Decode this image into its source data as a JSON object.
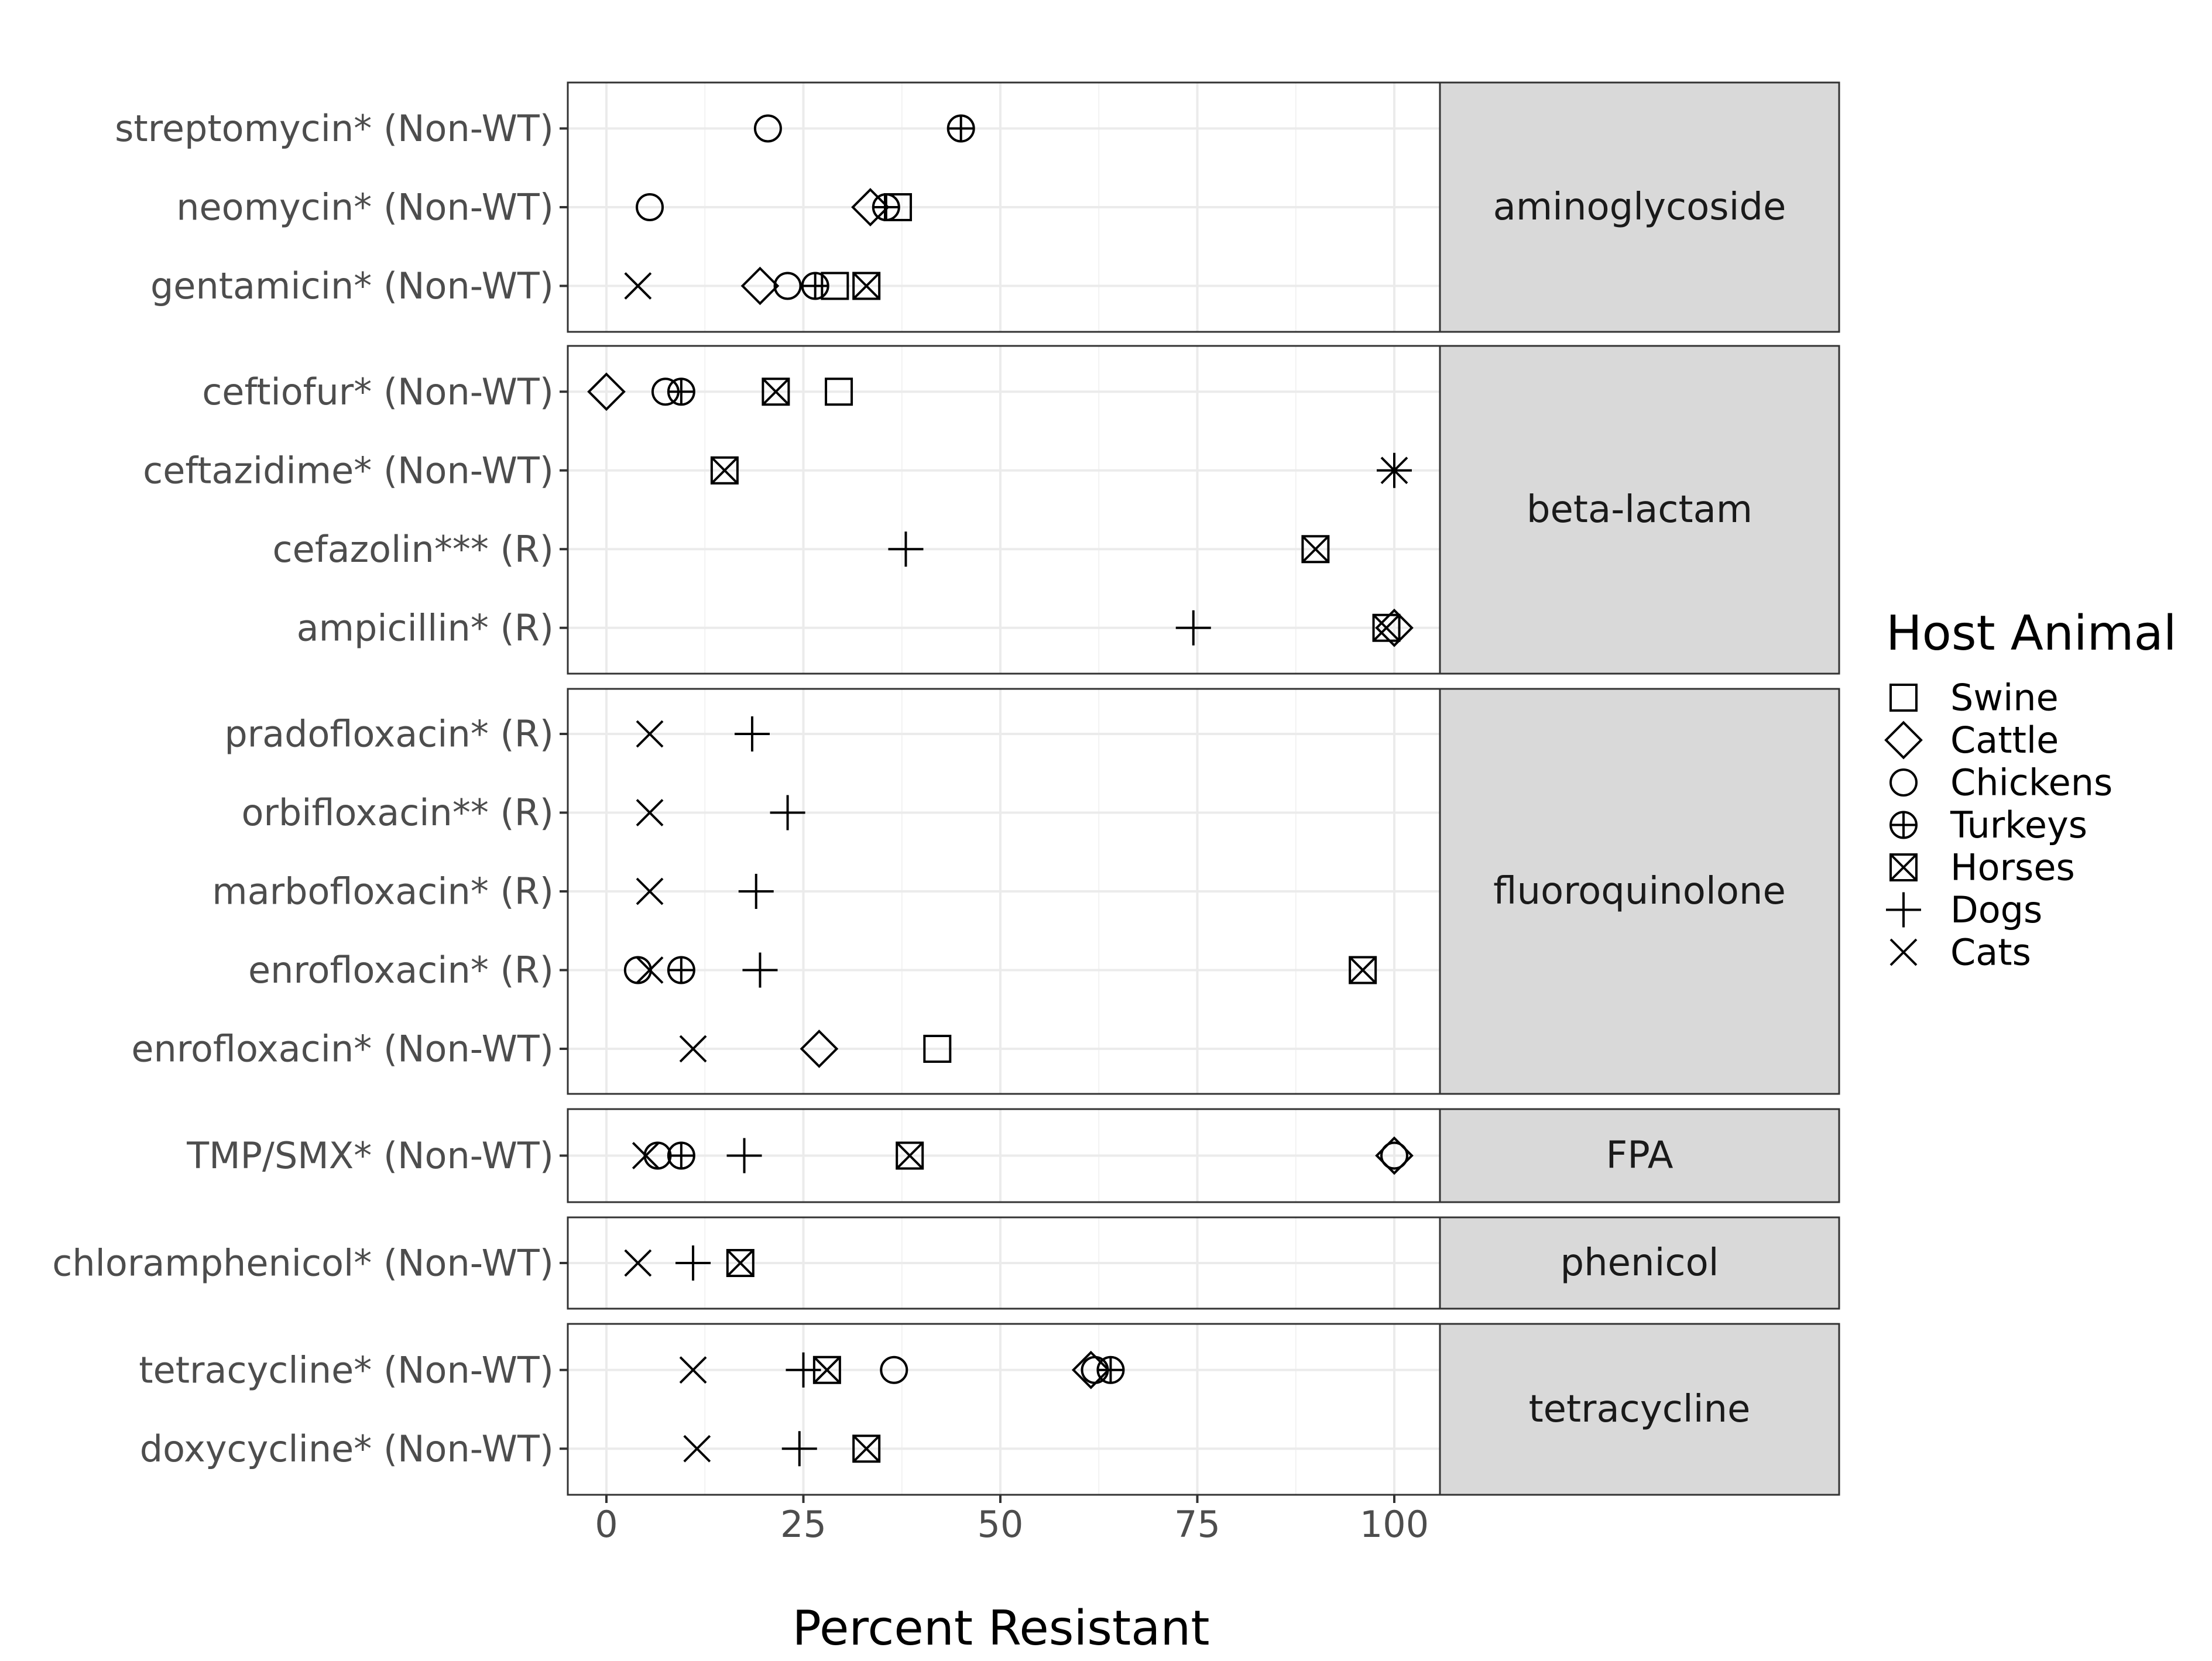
{
  "chart_data": {
    "type": "scatter",
    "xlabel": "Percent Resistant",
    "ylabel": "",
    "xlim": [
      -5,
      105
    ],
    "x_ticks": [
      0,
      25,
      50,
      75,
      100
    ],
    "x_tick_labels": [
      "0",
      "25",
      "50",
      "75",
      "100"
    ],
    "grid": true,
    "legend": {
      "title": "Host Animal",
      "placement": "right",
      "entries": [
        {
          "name": "Swine",
          "marker": "square"
        },
        {
          "name": "Cattle",
          "marker": "diamond"
        },
        {
          "name": "Chickens",
          "marker": "circle"
        },
        {
          "name": "Turkeys",
          "marker": "circle-plus"
        },
        {
          "name": "Horses",
          "marker": "square-x"
        },
        {
          "name": "Dogs",
          "marker": "plus"
        },
        {
          "name": "Cats",
          "marker": "x"
        }
      ]
    },
    "facets": [
      {
        "label": "aminoglycoside",
        "rows": [
          {
            "label": "streptomycin* (Non-WT)",
            "points": [
              {
                "host": "Chickens",
                "x": 20.5
              },
              {
                "host": "Turkeys",
                "x": 45
              }
            ]
          },
          {
            "label": "neomycin* (Non-WT)",
            "points": [
              {
                "host": "Chickens",
                "x": 5.5
              },
              {
                "host": "Cattle",
                "x": 33.5
              },
              {
                "host": "Turkeys",
                "x": 35.5
              },
              {
                "host": "Swine",
                "x": 37
              }
            ]
          },
          {
            "label": "gentamicin* (Non-WT)",
            "points": [
              {
                "host": "Cats",
                "x": 4
              },
              {
                "host": "Cattle",
                "x": 19.5
              },
              {
                "host": "Chickens",
                "x": 23
              },
              {
                "host": "Turkeys",
                "x": 26.5
              },
              {
                "host": "Swine",
                "x": 29
              },
              {
                "host": "Horses",
                "x": 33
              }
            ]
          }
        ]
      },
      {
        "label": "beta-lactam",
        "rows": [
          {
            "label": "ceftiofur* (Non-WT)",
            "points": [
              {
                "host": "Cattle",
                "x": 0
              },
              {
                "host": "Chickens",
                "x": 7.5
              },
              {
                "host": "Turkeys",
                "x": 9.5
              },
              {
                "host": "Horses",
                "x": 21.5
              },
              {
                "host": "Swine",
                "x": 29.5
              }
            ]
          },
          {
            "label": "ceftazidime* (Non-WT)",
            "points": [
              {
                "host": "Horses",
                "x": 15
              },
              {
                "host": "Dogs",
                "x": 100
              },
              {
                "host": "Cats",
                "x": 100
              }
            ]
          },
          {
            "label": "cefazolin*** (R)",
            "points": [
              {
                "host": "Dogs",
                "x": 38
              },
              {
                "host": "Horses",
                "x": 90
              }
            ]
          },
          {
            "label": "ampicillin* (R)",
            "points": [
              {
                "host": "Dogs",
                "x": 74.5
              },
              {
                "host": "Horses",
                "x": 99
              },
              {
                "host": "Cattle",
                "x": 100
              }
            ]
          }
        ]
      },
      {
        "label": "fluoroquinolone",
        "rows": [
          {
            "label": "pradofloxacin* (R)",
            "points": [
              {
                "host": "Cats",
                "x": 5.5
              },
              {
                "host": "Dogs",
                "x": 18.5
              }
            ]
          },
          {
            "label": "orbifloxacin** (R)",
            "points": [
              {
                "host": "Cats",
                "x": 5.5
              },
              {
                "host": "Dogs",
                "x": 23
              }
            ]
          },
          {
            "label": "marbofloxacin* (R)",
            "points": [
              {
                "host": "Cats",
                "x": 5.5
              },
              {
                "host": "Dogs",
                "x": 19
              }
            ]
          },
          {
            "label": "enrofloxacin* (R)",
            "points": [
              {
                "host": "Chickens",
                "x": 4
              },
              {
                "host": "Cats",
                "x": 5.5
              },
              {
                "host": "Turkeys",
                "x": 9.5
              },
              {
                "host": "Dogs",
                "x": 19.5
              },
              {
                "host": "Horses",
                "x": 96
              }
            ]
          },
          {
            "label": "enrofloxacin* (Non-WT)",
            "points": [
              {
                "host": "Cats",
                "x": 11
              },
              {
                "host": "Cattle",
                "x": 27
              },
              {
                "host": "Swine",
                "x": 42
              }
            ]
          }
        ]
      },
      {
        "label": "FPA",
        "rows": [
          {
            "label": "TMP/SMX* (Non-WT)",
            "points": [
              {
                "host": "Cats",
                "x": 5
              },
              {
                "host": "Chickens",
                "x": 6.5
              },
              {
                "host": "Turkeys",
                "x": 9.5
              },
              {
                "host": "Dogs",
                "x": 17.5
              },
              {
                "host": "Horses",
                "x": 38.5
              },
              {
                "host": "Cattle",
                "x": 100
              },
              {
                "host": "Chickens",
                "x": 100
              }
            ]
          }
        ]
      },
      {
        "label": "phenicol",
        "rows": [
          {
            "label": "chloramphenicol* (Non-WT)",
            "points": [
              {
                "host": "Cats",
                "x": 4
              },
              {
                "host": "Dogs",
                "x": 11
              },
              {
                "host": "Horses",
                "x": 17
              }
            ]
          }
        ]
      },
      {
        "label": "tetracycline",
        "rows": [
          {
            "label": "tetracycline* (Non-WT)",
            "points": [
              {
                "host": "Cats",
                "x": 11
              },
              {
                "host": "Dogs",
                "x": 25
              },
              {
                "host": "Horses",
                "x": 28
              },
              {
                "host": "Chickens",
                "x": 36.5
              },
              {
                "host": "Cattle",
                "x": 61.5
              },
              {
                "host": "Chickens",
                "x": 62
              },
              {
                "host": "Turkeys",
                "x": 64
              }
            ]
          },
          {
            "label": "doxycycline* (Non-WT)",
            "points": [
              {
                "host": "Cats",
                "x": 11.5
              },
              {
                "host": "Dogs",
                "x": 24.5
              },
              {
                "host": "Horses",
                "x": 33
              }
            ]
          }
        ]
      }
    ]
  }
}
